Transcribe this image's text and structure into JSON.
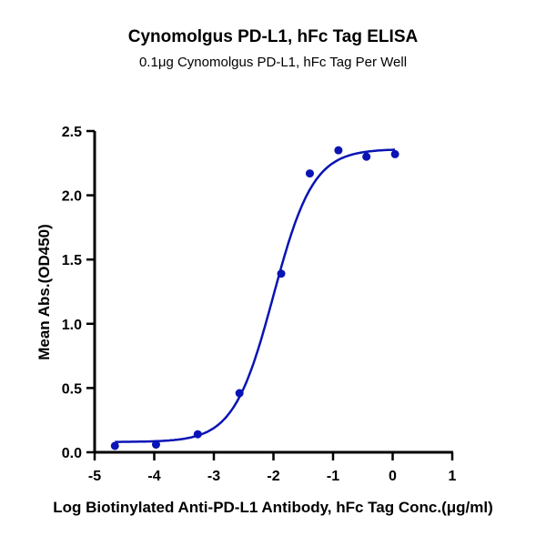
{
  "chart_data": {
    "type": "scatter",
    "title": "Cynomolgus PD-L1, hFc Tag ELISA",
    "subtitle": "0.1μg Cynomolgus PD-L1, hFc Tag Per Well",
    "xlabel": "Log Biotinylated Anti-PD-L1 Antibody, hFc Tag Conc.(μg/ml)",
    "ylabel": "Mean Abs.(OD450)",
    "xlim": [
      -5,
      1
    ],
    "ylim": [
      0,
      2.5
    ],
    "xticks": [
      "-5",
      "-4",
      "-3",
      "-2",
      "-1",
      "0",
      "1"
    ],
    "yticks": [
      "0.0",
      "0.5",
      "1.0",
      "1.5",
      "2.0",
      "2.5"
    ],
    "grid": false,
    "color": "#0a14b4",
    "points": {
      "x": [
        -4.66,
        -3.97,
        -3.27,
        -2.57,
        -1.87,
        -1.39,
        -0.91,
        -0.44,
        0.04
      ],
      "y": [
        0.05,
        0.06,
        0.14,
        0.46,
        1.39,
        2.17,
        2.35,
        2.3,
        2.32
      ]
    },
    "fit": {
      "model": "4PL",
      "bottom": 0.08,
      "top": 2.36,
      "logEC50": -2.0,
      "hill": 1.3,
      "x_range": [
        -4.66,
        0.04
      ]
    }
  }
}
